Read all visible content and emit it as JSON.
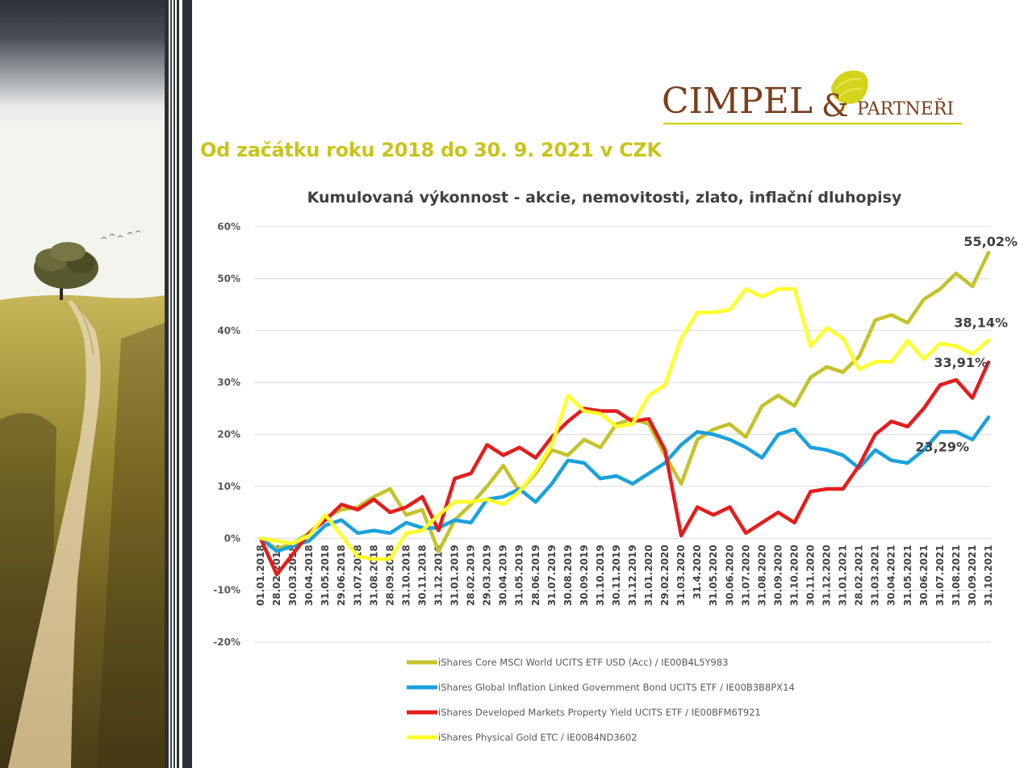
{
  "slide": {
    "heading": "Od začátku roku 2018 do 30. 9.  2021 v CZK",
    "logo": {
      "name": "CIMPEL",
      "ampersand": "&",
      "suffix": "PARTNEŘI"
    }
  },
  "chart_data": {
    "type": "line",
    "title": "Kumulovaná výkonnost - akcie, nemovitosti, zlato, inflační dluhopisy",
    "ylim": [
      -20,
      60
    ],
    "yticks": [
      "-20%",
      "-10%",
      "0%",
      "10%",
      "20%",
      "30%",
      "40%",
      "50%",
      "60%"
    ],
    "grid": true,
    "legend_position": "bottom",
    "x_tick_labels": [
      "01.01.2018",
      "28.02.2018",
      "30.03.2018",
      "30.04.2018",
      "31.05.2018",
      "29.06.2018",
      "31.07.2018",
      "31.08.2018",
      "28.09.2018",
      "31.10.2018",
      "30.11.2018",
      "31.12.2018",
      "31.01.2019",
      "28.02.2019",
      "29.03.2019",
      "30.04.2019",
      "31.05.2019",
      "28.06.2019",
      "31.07.2019",
      "30.08.2019",
      "30.09.2019",
      "31.10.2019",
      "30.11.2019",
      "31.12.2019",
      "31.01.2020",
      "29.02.2020",
      "31.03.2020",
      "31.4.2020",
      "31.05.2020",
      "30.06.2020",
      "31.07.2020",
      "31.08.2020",
      "30.09.2020",
      "31.10.2020",
      "30.11.2020",
      "31.12.2020",
      "31.01.2021",
      "28.02.2021",
      "31.03.2021",
      "30.04.2021",
      "31.05.2021",
      "30.06.2021",
      "31.07.2021",
      "31.08.2021",
      "30.09.2021",
      "31.10.2021"
    ],
    "series": [
      {
        "name": "iShares Core MSCI World UCITS ETF USD (Acc) / IE00B4L5Y983",
        "color": "#c5c22b",
        "end_label": "55,02%",
        "values": [
          0.0,
          -2.0,
          -1.0,
          1.0,
          4.0,
          5.5,
          6.0,
          8.0,
          9.5,
          4.5,
          5.5,
          -2.5,
          3.5,
          6.5,
          10.0,
          14.0,
          9.0,
          12.5,
          17.0,
          16.0,
          19.0,
          17.5,
          22.0,
          23.0,
          22.0,
          16.0,
          10.5,
          19.0,
          21.0,
          22.0,
          19.5,
          25.5,
          27.5,
          25.5,
          31.0,
          33.0,
          32.0,
          35.0,
          42.0,
          43.0,
          41.5,
          46.0,
          48.0,
          51.0,
          48.5,
          55.02
        ]
      },
      {
        "name": "iShares Global Inflation Linked Government Bond UCITS ETF / IE00B3B8PX14",
        "color": "#1ba1dd",
        "end_label": "23,29%",
        "values": [
          0.0,
          -2.5,
          -1.5,
          -0.5,
          2.5,
          3.5,
          1.0,
          1.5,
          1.0,
          3.0,
          2.0,
          2.0,
          3.5,
          3.0,
          7.5,
          8.0,
          9.5,
          7.0,
          10.5,
          15.0,
          14.5,
          11.5,
          12.0,
          10.5,
          12.5,
          14.5,
          18.0,
          20.5,
          20.0,
          19.0,
          17.5,
          15.5,
          20.0,
          21.0,
          17.5,
          17.0,
          16.0,
          13.5,
          17.0,
          15.0,
          14.5,
          17.0,
          20.5,
          20.5,
          19.0,
          23.29
        ]
      },
      {
        "name": "iShares Developed Markets Property Yield UCITS ETF / IE00BFM6T921",
        "color": "#e41d1d",
        "end_label": "33,91%",
        "values": [
          0.0,
          -7.0,
          -3.0,
          1.0,
          3.5,
          6.5,
          5.5,
          7.5,
          5.0,
          6.0,
          8.0,
          1.5,
          11.5,
          12.5,
          18.0,
          16.0,
          17.5,
          15.5,
          19.5,
          22.5,
          25.0,
          24.5,
          24.5,
          22.5,
          23.0,
          17.0,
          0.5,
          6.0,
          4.5,
          6.0,
          1.0,
          3.0,
          5.0,
          3.0,
          9.0,
          9.5,
          9.5,
          14.0,
          20.0,
          22.5,
          21.5,
          25.0,
          29.5,
          30.5,
          27.0,
          33.91
        ]
      },
      {
        "name": "iShares Physical Gold ETC / IE00B4ND3602",
        "color": "#ffff2a",
        "end_label": "38,14%",
        "values": [
          0.0,
          -0.5,
          -1.0,
          0.5,
          4.5,
          0.5,
          -3.5,
          -4.0,
          -4.0,
          1.0,
          1.5,
          4.5,
          7.0,
          7.0,
          7.5,
          6.5,
          9.0,
          13.0,
          18.0,
          27.5,
          24.5,
          24.0,
          21.5,
          22.0,
          27.5,
          29.5,
          38.5,
          43.5,
          43.5,
          44.0,
          48.0,
          46.5,
          48.0,
          48.0,
          37.0,
          40.5,
          38.5,
          32.5,
          34.0,
          34.0,
          38.0,
          34.5,
          37.5,
          37.0,
          35.5,
          38.14
        ]
      }
    ]
  }
}
